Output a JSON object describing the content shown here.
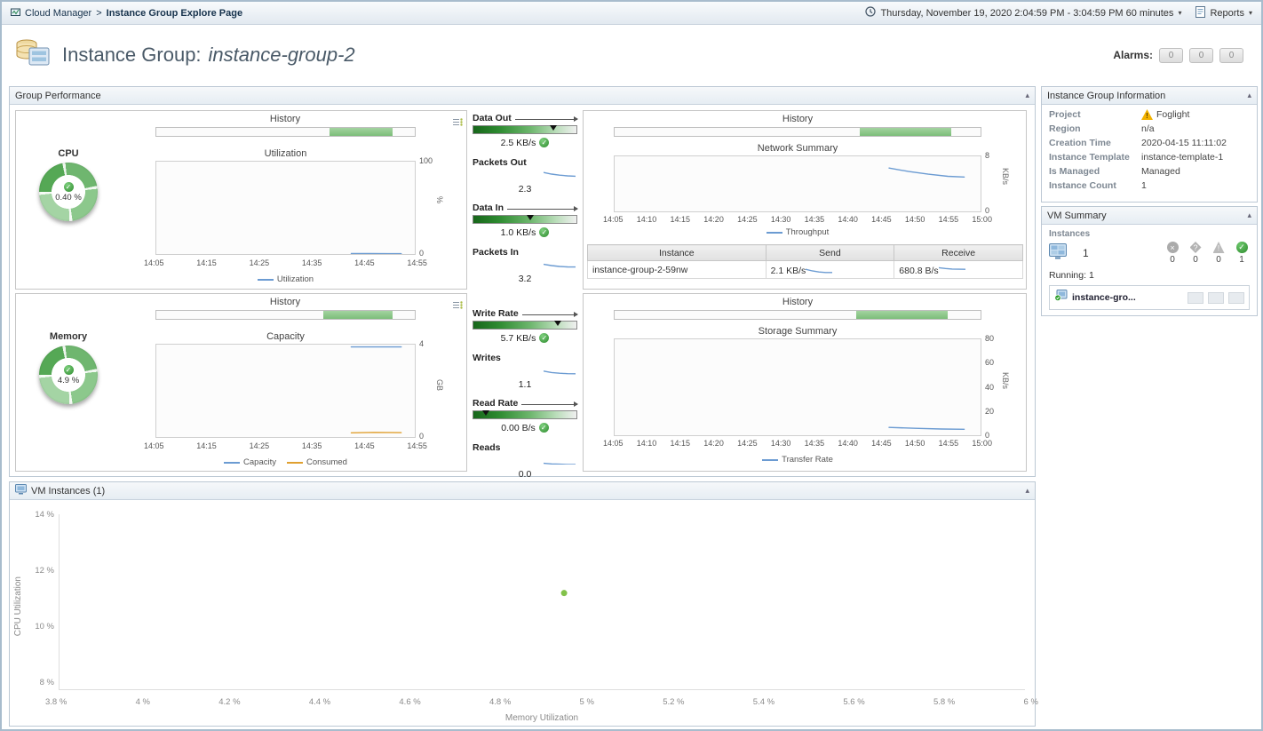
{
  "breadcrumb": {
    "root": "Cloud Manager",
    "separator": ">",
    "current": "Instance Group Explore Page"
  },
  "topbar": {
    "time_range": "Thursday, November 19, 2020 2:04:59 PM - 3:04:59 PM 60 minutes",
    "reports_label": "Reports"
  },
  "header": {
    "title_prefix": "Instance Group:",
    "title_name": "instance-group-2",
    "alarms_label": "Alarms:",
    "alarm_counts": [
      "0",
      "0",
      "0"
    ]
  },
  "group_performance": {
    "title": "Group Performance",
    "cpu": {
      "label": "CPU",
      "gauge_value": "0.40 %",
      "history_title": "History",
      "history_bar": {
        "start": 0.67,
        "width": 0.245
      },
      "chart": {
        "title": "Utilization",
        "y_ticks": [
          "100",
          "0"
        ],
        "y_unit": "%",
        "x_ticks": [
          "14:05",
          "14:15",
          "14:25",
          "14:35",
          "14:45",
          "14:55"
        ],
        "legend": "Utilization",
        "line": {
          "xdomain": [
            843,
            900
          ],
          "ydomain": [
            0,
            100
          ],
          "series": [
            {
              "name": "Utilization",
              "color": "#6b9bd2",
              "x": [
                886,
                890,
                894,
                897
              ],
              "y": [
                0.6,
                0.5,
                0.4,
                0.4
              ]
            }
          ]
        }
      }
    },
    "memory": {
      "label": "Memory",
      "gauge_value": "4.9 %",
      "history_title": "History",
      "history_bar": {
        "start": 0.645,
        "width": 0.27
      },
      "chart": {
        "title": "Capacity",
        "y_ticks": [
          "4",
          "0"
        ],
        "y_unit": "GB",
        "x_ticks": [
          "14:05",
          "14:15",
          "14:25",
          "14:35",
          "14:45",
          "14:55"
        ],
        "legend_items": [
          {
            "label": "Capacity"
          },
          {
            "label": "Consumed"
          }
        ],
        "line": {
          "xdomain": [
            843,
            900
          ],
          "ydomain": [
            0,
            4
          ],
          "series": [
            {
              "name": "Capacity",
              "color": "#6b9bd2",
              "x": [
                886,
                891,
                897
              ],
              "y": [
                3.9,
                3.9,
                3.9
              ]
            },
            {
              "name": "Consumed",
              "color": "#e0a030",
              "x": [
                886,
                891,
                897
              ],
              "y": [
                0.18,
                0.2,
                0.19
              ]
            }
          ]
        }
      }
    },
    "metrics": {
      "data_out": {
        "label": "Data Out",
        "value": "2.5 KB/s",
        "marker": 0.78
      },
      "packets_out": {
        "label": "Packets Out",
        "value": "2.3",
        "spark": {
          "xdomain": [
            0,
            4
          ],
          "ydomain": [
            2,
            3
          ],
          "series": [
            {
              "color": "#6b9bd2",
              "x": [
                0,
                1,
                2,
                3,
                4
              ],
              "y": [
                2.65,
                2.5,
                2.4,
                2.33,
                2.3
              ]
            }
          ]
        }
      },
      "data_in": {
        "label": "Data In",
        "value": "1.0 KB/s",
        "marker": 0.55
      },
      "packets_in": {
        "label": "Packets In",
        "value": "3.2",
        "spark": {
          "xdomain": [
            0,
            4
          ],
          "ydomain": [
            3,
            4
          ],
          "series": [
            {
              "color": "#6b9bd2",
              "x": [
                0,
                1,
                2,
                3,
                4
              ],
              "y": [
                3.45,
                3.33,
                3.25,
                3.21,
                3.2
              ]
            }
          ]
        }
      },
      "write_rate": {
        "label": "Write Rate",
        "value": "5.7 KB/s",
        "marker": 0.82
      },
      "writes": {
        "label": "Writes",
        "value": "1.1",
        "spark": {
          "xdomain": [
            0,
            4
          ],
          "ydomain": [
            1,
            2
          ],
          "series": [
            {
              "color": "#6b9bd2",
              "x": [
                0,
                1,
                2,
                3,
                4
              ],
              "y": [
                1.35,
                1.22,
                1.15,
                1.11,
                1.1
              ]
            }
          ]
        }
      },
      "read_rate": {
        "label": "Read Rate",
        "value": "0.00 B/s",
        "marker": 0.12
      },
      "reads": {
        "label": "Reads",
        "value": "0.0",
        "spark": {
          "xdomain": [
            0,
            4
          ],
          "ydomain": [
            0,
            1
          ],
          "series": [
            {
              "color": "#6b9bd2",
              "x": [
                0,
                1,
                2,
                3,
                4
              ],
              "y": [
                0.12,
                0.06,
                0.03,
                0.01,
                0.0
              ]
            }
          ]
        }
      }
    },
    "network": {
      "history_title": "History",
      "history_bar": {
        "start": 0.67,
        "width": 0.25
      },
      "chart": {
        "title": "Network Summary",
        "y_ticks": [
          "8",
          "0"
        ],
        "y_unit": "KB/s",
        "x_ticks": [
          "14:05",
          "14:10",
          "14:15",
          "14:20",
          "14:25",
          "14:30",
          "14:35",
          "14:40",
          "14:45",
          "14:50",
          "14:55",
          "15:00"
        ],
        "legend": "Throughput",
        "line": {
          "xdomain": [
            845,
            901
          ],
          "ydomain": [
            0,
            8
          ],
          "series": [
            {
              "name": "Throughput",
              "color": "#6b9bd2",
              "x": [
                887,
                890,
                893,
                896,
                898.5
              ],
              "y": [
                6.3,
                5.8,
                5.4,
                5.1,
                5.0
              ]
            }
          ]
        }
      },
      "table": {
        "columns": [
          "Instance",
          "Send",
          "Receive"
        ],
        "row": {
          "instance": "instance-group-2-59nw",
          "send": "2.1 KB/s",
          "receive": "680.8 B/s",
          "send_spark": {
            "xdomain": [
              0,
              4
            ],
            "ydomain": [
              2,
              3
            ],
            "series": [
              {
                "color": "#6b9bd2",
                "x": [
                  0,
                  1,
                  2,
                  3,
                  4
                ],
                "y": [
                  2.4,
                  2.25,
                  2.15,
                  2.1,
                  2.1
                ]
              }
            ]
          },
          "receive_spark": {
            "xdomain": [
              0,
              4
            ],
            "ydomain": [
              600,
              800
            ],
            "series": [
              {
                "color": "#6b9bd2",
                "x": [
                  0,
                  1,
                  2,
                  3,
                  4
                ],
                "y": [
                  710,
                  695,
                  685,
                  681,
                  680.8
                ]
              }
            ]
          }
        }
      }
    },
    "storage": {
      "history_title": "History",
      "history_bar": {
        "start": 0.66,
        "width": 0.25
      },
      "chart": {
        "title": "Storage Summary",
        "y_ticks": [
          "80",
          "60",
          "40",
          "20",
          "0"
        ],
        "y_unit": "KB/s",
        "x_ticks": [
          "14:05",
          "14:10",
          "14:15",
          "14:20",
          "14:25",
          "14:30",
          "14:35",
          "14:40",
          "14:45",
          "14:50",
          "14:55",
          "15:00"
        ],
        "legend": "Transfer Rate",
        "line": {
          "xdomain": [
            845,
            901
          ],
          "ydomain": [
            0,
            80
          ],
          "series": [
            {
              "name": "Transfer Rate",
              "color": "#6b9bd2",
              "x": [
                887,
                891,
                895,
                898.5
              ],
              "y": [
                6.5,
                5.8,
                5.2,
                5.0
              ]
            }
          ]
        }
      }
    }
  },
  "vm_instances": {
    "title": "VM Instances (1)",
    "chart_data": {
      "type": "scatter",
      "xlabel": "Memory Utilization",
      "ylabel": "CPU Utilization",
      "x_ticks": [
        "3.8 %",
        "4 %",
        "4.2 %",
        "4.4 %",
        "4.6 %",
        "4.8 %",
        "5 %",
        "5.2 %",
        "5.4 %",
        "5.6 %",
        "5.8 %",
        "6 %"
      ],
      "y_ticks": [
        "14 %",
        "12 %",
        "10 %",
        "8 %"
      ],
      "xdomain": [
        3.8,
        6
      ],
      "ydomain": [
        8,
        14
      ],
      "points": [
        {
          "name": "instance-group-2-59nw",
          "x": 4.95,
          "y": 11.3,
          "r": 3.5,
          "color": "#82c24a"
        }
      ]
    }
  },
  "sidebar": {
    "info": {
      "title": "Instance Group Information",
      "rows": [
        {
          "label": "Project",
          "value": "Foglight"
        },
        {
          "label": "Region",
          "value": "n/a"
        },
        {
          "label": "Creation Time",
          "value": "2020-04-15 11:11:02"
        },
        {
          "label": "Instance Template",
          "value": "instance-template-1"
        },
        {
          "label": "Is Managed",
          "value": "Managed"
        },
        {
          "label": "Instance Count",
          "value": "1"
        }
      ]
    },
    "vm_summary": {
      "title": "VM Summary",
      "instances_label": "Instances",
      "instance_count": "1",
      "statuses": [
        {
          "name": "fatal",
          "count": "0"
        },
        {
          "name": "critical",
          "count": "0"
        },
        {
          "name": "warning",
          "count": "0"
        },
        {
          "name": "normal",
          "count": "1"
        }
      ],
      "running_label": "Running: 1",
      "items": [
        {
          "name": "instance-gro..."
        }
      ]
    }
  }
}
